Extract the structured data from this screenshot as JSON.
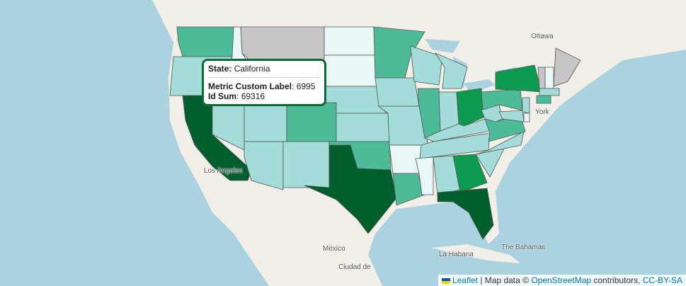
{
  "colors": {
    "ocean": "#aad3df",
    "land": "#f2efe9",
    "no_data": "#c6c6c6",
    "level1": "#e9f6f8",
    "level2": "#a3dcd8",
    "level3": "#4dbb98",
    "level4": "#0b9a4e",
    "level5": "#005f2d"
  },
  "tooltip": {
    "state_label": "State:",
    "state_value": "California",
    "metric_label": "Metric Custom Label",
    "metric_value": "6995",
    "sum_label": "Id Sum",
    "sum_value": "69316"
  },
  "places": {
    "ottawa": "Ottawa",
    "new_york": "York",
    "los_angeles": "Los Angeles",
    "mexico": "México",
    "ciudad": "Ciudad de",
    "la_habana": "La Habana",
    "bahamas": "The Bahamas"
  },
  "states": [
    {
      "name": "Washington",
      "level": "level3"
    },
    {
      "name": "Oregon",
      "level": "level2"
    },
    {
      "name": "California",
      "level": "level5"
    },
    {
      "name": "Idaho",
      "level": "level1"
    },
    {
      "name": "Montana",
      "level": "no_data"
    },
    {
      "name": "Wyoming",
      "level": "level2"
    },
    {
      "name": "Nevada",
      "level": "level2"
    },
    {
      "name": "Utah",
      "level": "level2"
    },
    {
      "name": "Colorado",
      "level": "level3"
    },
    {
      "name": "Arizona",
      "level": "level2"
    },
    {
      "name": "New Mexico",
      "level": "level2"
    },
    {
      "name": "North Dakota",
      "level": "level1"
    },
    {
      "name": "South Dakota",
      "level": "level1"
    },
    {
      "name": "Nebraska",
      "level": "level2"
    },
    {
      "name": "Kansas",
      "level": "level2"
    },
    {
      "name": "Oklahoma",
      "level": "level3"
    },
    {
      "name": "Texas",
      "level": "level5"
    },
    {
      "name": "Minnesota",
      "level": "level3"
    },
    {
      "name": "Iowa",
      "level": "level2"
    },
    {
      "name": "Missouri",
      "level": "level2"
    },
    {
      "name": "Arkansas",
      "level": "level1"
    },
    {
      "name": "Louisiana",
      "level": "level3"
    },
    {
      "name": "Wisconsin",
      "level": "level2"
    },
    {
      "name": "Michigan",
      "level": "level2"
    },
    {
      "name": "Illinois",
      "level": "level3"
    },
    {
      "name": "Indiana",
      "level": "level2"
    },
    {
      "name": "Ohio",
      "level": "level4"
    },
    {
      "name": "Kentucky",
      "level": "level2"
    },
    {
      "name": "Tennessee",
      "level": "level2"
    },
    {
      "name": "Mississippi",
      "level": "level1"
    },
    {
      "name": "Alabama",
      "level": "level2"
    },
    {
      "name": "Georgia",
      "level": "level4"
    },
    {
      "name": "Florida",
      "level": "level5"
    },
    {
      "name": "South Carolina",
      "level": "level2"
    },
    {
      "name": "North Carolina",
      "level": "level2"
    },
    {
      "name": "Virginia",
      "level": "level3"
    },
    {
      "name": "West Virginia",
      "level": "level2"
    },
    {
      "name": "Pennsylvania",
      "level": "level3"
    },
    {
      "name": "New York",
      "level": "level4"
    },
    {
      "name": "Maine",
      "level": "no_data"
    },
    {
      "name": "Vermont",
      "level": "no_data"
    },
    {
      "name": "New Hampshire",
      "level": "level1"
    },
    {
      "name": "Massachusetts",
      "level": "level2"
    },
    {
      "name": "Connecticut",
      "level": "level3"
    },
    {
      "name": "New Jersey",
      "level": "level2"
    },
    {
      "name": "Maryland",
      "level": "level2"
    },
    {
      "name": "Delaware",
      "level": "level1"
    }
  ],
  "attribution": {
    "leaflet": "Leaflet",
    "sep": " | Map data © ",
    "osm": "OpenStreetMap",
    "contributors": " contributors, ",
    "license": "CC-BY-SA"
  }
}
